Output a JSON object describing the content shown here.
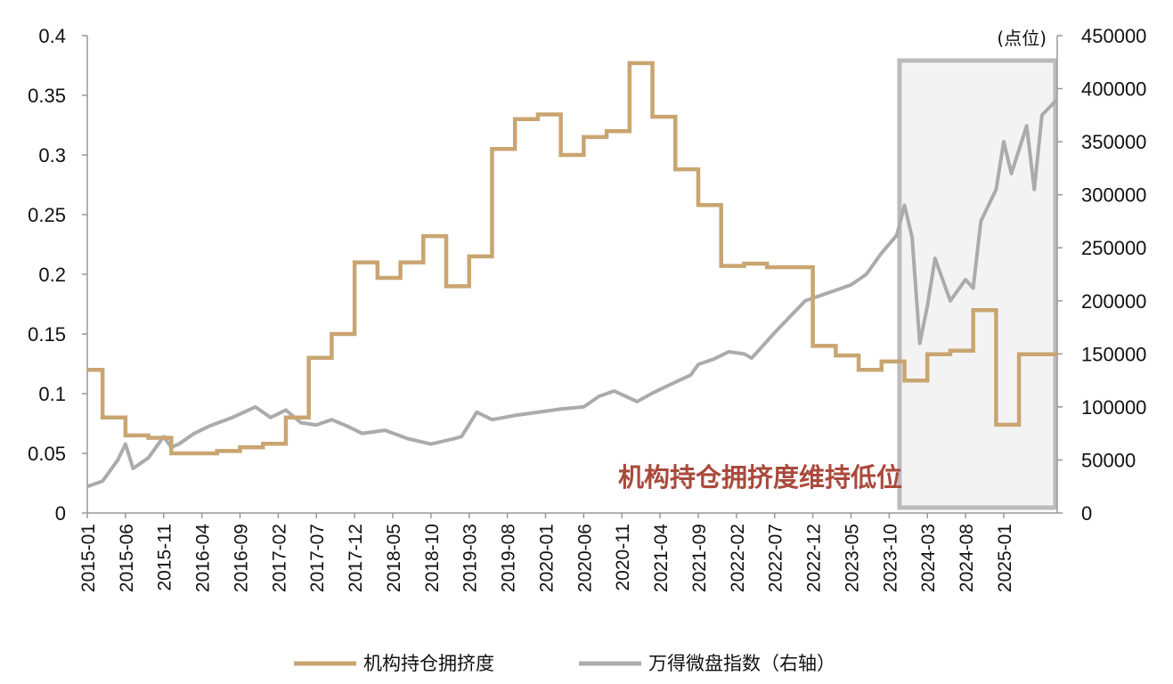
{
  "chart_data": {
    "type": "line",
    "colors": {
      "crowding": "#C9A571",
      "index": "#ABABAB",
      "highlight_box": "#BBBBBB",
      "annotation": "#A94A3C"
    },
    "left_axis": {
      "min": 0,
      "max": 0.4,
      "ticks": [
        "0",
        "0.05",
        "0.1",
        "0.15",
        "0.2",
        "0.25",
        "0.3",
        "0.35",
        "0.4"
      ]
    },
    "right_axis": {
      "min": 0,
      "max": 450000,
      "unit": "(点位)",
      "ticks": [
        "0",
        "50000",
        "100000",
        "150000",
        "200000",
        "250000",
        "300000",
        "350000",
        "400000",
        "450000"
      ]
    },
    "x_range": [
      "2015-01",
      "2025-08"
    ],
    "x_ticks": [
      "2015-01",
      "2015-06",
      "2015-11",
      "2016-04",
      "2016-09",
      "2017-02",
      "2017-07",
      "2017-12",
      "2018-05",
      "2018-10",
      "2019-03",
      "2019-08",
      "2020-01",
      "2020-06",
      "2020-11",
      "2021-04",
      "2021-09",
      "2022-02",
      "2022-07",
      "2022-12",
      "2023-05",
      "2023-10",
      "2024-03",
      "2024-08",
      "2025-01"
    ],
    "annotation": "机构持仓拥挤度维持低位",
    "highlight_range": [
      "2023-11",
      "2025-08"
    ],
    "series": [
      {
        "name": "机构持仓拥挤度",
        "axis": "left",
        "step": true,
        "x": [
          "2015-01",
          "2015-03",
          "2015-06",
          "2015-09",
          "2015-12",
          "2016-03",
          "2016-06",
          "2016-09",
          "2016-12",
          "2017-03",
          "2017-06",
          "2017-09",
          "2017-12",
          "2018-03",
          "2018-06",
          "2018-09",
          "2018-12",
          "2019-03",
          "2019-06",
          "2019-09",
          "2019-12",
          "2020-03",
          "2020-06",
          "2020-09",
          "2020-12",
          "2021-03",
          "2021-06",
          "2021-09",
          "2021-12",
          "2022-03",
          "2022-06",
          "2022-09",
          "2022-12",
          "2023-03",
          "2023-06",
          "2023-09",
          "2023-12",
          "2024-03",
          "2024-06",
          "2024-09",
          "2024-12",
          "2025-03",
          "2025-06",
          "2025-08"
        ],
        "values": [
          0.12,
          0.08,
          0.065,
          0.063,
          0.05,
          0.05,
          0.052,
          0.055,
          0.058,
          0.08,
          0.13,
          0.15,
          0.21,
          0.197,
          0.21,
          0.232,
          0.19,
          0.215,
          0.305,
          0.33,
          0.334,
          0.3,
          0.315,
          0.32,
          0.377,
          0.332,
          0.288,
          0.258,
          0.207,
          0.209,
          0.206,
          0.206,
          0.14,
          0.132,
          0.12,
          0.127,
          0.111,
          0.133,
          0.136,
          0.17,
          0.074,
          0.133,
          0.133,
          0.133
        ]
      },
      {
        "name": "万得微盘指数（右轴）",
        "axis": "right",
        "step": false,
        "x": [
          "2015-01",
          "2015-03",
          "2015-05",
          "2015-06",
          "2015-07",
          "2015-09",
          "2015-11",
          "2015-12",
          "2016-01",
          "2016-03",
          "2016-05",
          "2016-08",
          "2016-11",
          "2017-01",
          "2017-03",
          "2017-05",
          "2017-07",
          "2017-09",
          "2017-11",
          "2018-01",
          "2018-04",
          "2018-07",
          "2018-10",
          "2019-01",
          "2019-02",
          "2019-04",
          "2019-06",
          "2019-09",
          "2019-12",
          "2020-03",
          "2020-06",
          "2020-08",
          "2020-10",
          "2021-01",
          "2021-03",
          "2021-05",
          "2021-08",
          "2021-09",
          "2021-11",
          "2022-01",
          "2022-03",
          "2022-04",
          "2022-07",
          "2022-09",
          "2022-11",
          "2023-01",
          "2023-03",
          "2023-05",
          "2023-07",
          "2023-09",
          "2023-11",
          "2023-12",
          "2024-01",
          "2024-02",
          "2024-03",
          "2024-04",
          "2024-06",
          "2024-08",
          "2024-09",
          "2024-10",
          "2024-12",
          "2025-01",
          "2025-02",
          "2025-04",
          "2025-05",
          "2025-06",
          "2025-08"
        ],
        "values": [
          25000,
          30000,
          50000,
          65000,
          42000,
          52000,
          72000,
          62000,
          65000,
          75000,
          82000,
          90000,
          100000,
          90000,
          97000,
          85000,
          83000,
          88000,
          82000,
          75000,
          78000,
          70000,
          65000,
          70000,
          72000,
          95000,
          88000,
          92000,
          95000,
          98000,
          100000,
          110000,
          115000,
          105000,
          113000,
          120000,
          130000,
          140000,
          145000,
          152000,
          150000,
          146000,
          170000,
          185000,
          200000,
          205000,
          210000,
          215000,
          225000,
          245000,
          262000,
          290000,
          260000,
          160000,
          195000,
          240000,
          200000,
          220000,
          212000,
          275000,
          305000,
          350000,
          320000,
          365000,
          305000,
          375000,
          390000
        ]
      }
    ]
  }
}
